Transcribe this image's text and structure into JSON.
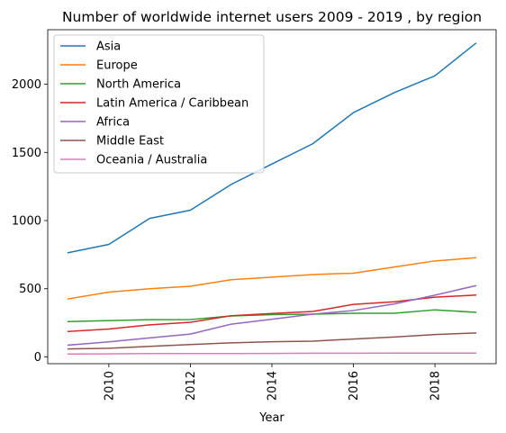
{
  "chart_data": {
    "type": "line",
    "title": "Number of worldwide internet users 2009 - 2019 , by region",
    "xlabel": "Year",
    "ylabel": "",
    "x": [
      2009,
      2010,
      2011,
      2012,
      2013,
      2014,
      2015,
      2016,
      2017,
      2018,
      2019
    ],
    "xlim": [
      2008.5,
      2019.5
    ],
    "ylim": [
      -50,
      2400
    ],
    "xticks": [
      2010,
      2012,
      2014,
      2016,
      2018
    ],
    "yticks": [
      0,
      500,
      1000,
      1500,
      2000
    ],
    "grid": false,
    "legend_position": "top-left",
    "series": [
      {
        "name": "Asia",
        "color": "#1f77b4",
        "values": [
          764,
          825,
          1016,
          1076,
          1265,
          1415,
          1563,
          1792,
          1938,
          2062,
          2300
        ]
      },
      {
        "name": "Europe",
        "color": "#ff7f0e",
        "values": [
          425,
          475,
          500,
          518,
          566,
          585,
          604,
          614,
          659,
          704,
          727
        ]
      },
      {
        "name": "North America",
        "color": "#2ca02c",
        "values": [
          259,
          266,
          273,
          274,
          300,
          310,
          313,
          320,
          320,
          345,
          327
        ]
      },
      {
        "name": "Latin America / Caribbean",
        "color": "#d62728",
        "values": [
          186,
          204,
          235,
          254,
          302,
          318,
          333,
          385,
          404,
          438,
          453
        ]
      },
      {
        "name": "Africa",
        "color": "#9467bd",
        "values": [
          86,
          110,
          139,
          167,
          240,
          276,
          313,
          340,
          388,
          453,
          522
        ]
      },
      {
        "name": "Middle East",
        "color": "#8c564b",
        "values": [
          58,
          63,
          77,
          90,
          103,
          111,
          115,
          131,
          146,
          164,
          175
        ]
      },
      {
        "name": "Oceania / Australia",
        "color": "#e377c2",
        "values": [
          21,
          22,
          24,
          24,
          24,
          25,
          27,
          27,
          28,
          28,
          28
        ]
      }
    ]
  }
}
